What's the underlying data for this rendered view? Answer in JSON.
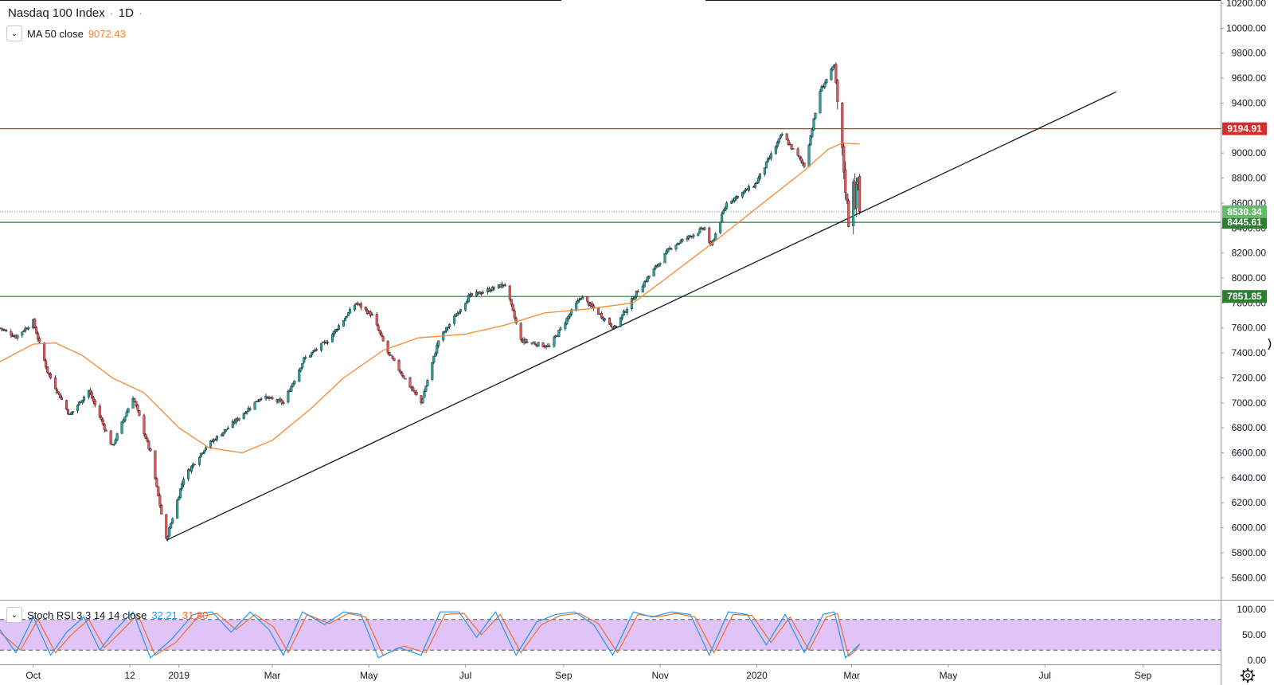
{
  "header": {
    "title": "Nasdaq 100 Index",
    "interval": "1D",
    "ma_label": "MA 50 close",
    "ma_value": "9072.43",
    "stoch_label": "Stoch RSI 3 3 14 14 close",
    "stoch_k": "32.21",
    "stoch_d": "31.80"
  },
  "colors": {
    "up": "#26a69a",
    "down": "#ef5350",
    "ma": "#f7882f",
    "resistance": "#d32f2f",
    "support": "#2e7d32",
    "current": "#66bb6a",
    "stoch_k": "#2196f3",
    "stoch_d": "#ef6c2f",
    "band": "#e1c4f7"
  },
  "chart_data": {
    "type": "candlestick",
    "price_axis": {
      "min": 5500,
      "max": 10200,
      "ticks": [
        "10200.00",
        "10000.00",
        "9800.00",
        "9600.00",
        "9400.00",
        "9200.00",
        "9000.00",
        "8800.00",
        "8600.00",
        "8400.00",
        "8200.00",
        "8000.00",
        "7800.00",
        "7600.00",
        "7400.00",
        "7200.00",
        "7000.00",
        "6800.00",
        "6600.00",
        "6400.00",
        "6200.00",
        "6000.00",
        "5800.00",
        "5600.00"
      ]
    },
    "time_axis": {
      "start": "2018-09-10",
      "end": "2020-10-20",
      "labels": [
        {
          "date": "2018-10-01",
          "text": "Oct"
        },
        {
          "date": "2018-12-01",
          "text": "12"
        },
        {
          "date": "2019-01-01",
          "text": "2019"
        },
        {
          "date": "2019-03-01",
          "text": "Mar"
        },
        {
          "date": "2019-05-01",
          "text": "May"
        },
        {
          "date": "2019-07-01",
          "text": "Jul"
        },
        {
          "date": "2019-09-01",
          "text": "Sep"
        },
        {
          "date": "2019-11-01",
          "text": "Nov"
        },
        {
          "date": "2020-01-01",
          "text": "2020"
        },
        {
          "date": "2020-03-01",
          "text": "Mar"
        },
        {
          "date": "2020-05-01",
          "text": "May"
        },
        {
          "date": "2020-07-01",
          "text": "Jul"
        },
        {
          "date": "2020-09-01",
          "text": "Sep"
        }
      ]
    },
    "price_path": [
      [
        "2018-09-10",
        7600
      ],
      [
        "2018-09-20",
        7530
      ],
      [
        "2018-10-01",
        7650
      ],
      [
        "2018-10-10",
        7250
      ],
      [
        "2018-10-24",
        6900
      ],
      [
        "2018-11-05",
        7100
      ],
      [
        "2018-11-20",
        6650
      ],
      [
        "2018-12-03",
        7050
      ],
      [
        "2018-12-14",
        6600
      ],
      [
        "2018-12-24",
        5900
      ],
      [
        "2019-01-04",
        6400
      ],
      [
        "2019-01-18",
        6650
      ],
      [
        "2019-02-01",
        6800
      ],
      [
        "2019-02-22",
        7050
      ],
      [
        "2019-03-08",
        7000
      ],
      [
        "2019-03-21",
        7350
      ],
      [
        "2019-04-05",
        7500
      ],
      [
        "2019-04-23",
        7800
      ],
      [
        "2019-05-03",
        7700
      ],
      [
        "2019-05-13",
        7400
      ],
      [
        "2019-06-03",
        7000
      ],
      [
        "2019-06-14",
        7500
      ],
      [
        "2019-07-03",
        7850
      ],
      [
        "2019-07-26",
        7950
      ],
      [
        "2019-08-05",
        7500
      ],
      [
        "2019-08-23",
        7450
      ],
      [
        "2019-09-12",
        7850
      ],
      [
        "2019-10-03",
        7600
      ],
      [
        "2019-10-18",
        7900
      ],
      [
        "2019-11-08",
        8250
      ],
      [
        "2019-11-29",
        8400
      ],
      [
        "2019-12-03",
        8250
      ],
      [
        "2019-12-13",
        8600
      ],
      [
        "2019-12-31",
        8750
      ],
      [
        "2020-01-17",
        9150
      ],
      [
        "2020-01-31",
        8900
      ],
      [
        "2020-02-10",
        9500
      ],
      [
        "2020-02-19",
        9700
      ],
      [
        "2020-02-21",
        9400
      ],
      [
        "2020-02-24",
        9000
      ],
      [
        "2020-02-28",
        8450
      ],
      [
        "2020-03-02",
        8800
      ],
      [
        "2020-03-03",
        8600
      ],
      [
        "2020-03-05",
        8800
      ],
      [
        "2020-03-06",
        8530
      ]
    ],
    "ma50_path": [
      [
        "2018-09-10",
        7330
      ],
      [
        "2018-10-01",
        7470
      ],
      [
        "2018-10-15",
        7480
      ],
      [
        "2018-11-01",
        7380
      ],
      [
        "2018-11-20",
        7200
      ],
      [
        "2018-12-10",
        7080
      ],
      [
        "2019-01-01",
        6800
      ],
      [
        "2019-01-20",
        6640
      ],
      [
        "2019-02-10",
        6600
      ],
      [
        "2019-03-01",
        6700
      ],
      [
        "2019-03-25",
        6950
      ],
      [
        "2019-04-15",
        7200
      ],
      [
        "2019-05-10",
        7420
      ],
      [
        "2019-06-01",
        7520
      ],
      [
        "2019-07-01",
        7550
      ],
      [
        "2019-07-25",
        7620
      ],
      [
        "2019-08-20",
        7720
      ],
      [
        "2019-09-15",
        7750
      ],
      [
        "2019-10-15",
        7800
      ],
      [
        "2019-11-05",
        8000
      ],
      [
        "2019-12-01",
        8250
      ],
      [
        "2019-12-31",
        8550
      ],
      [
        "2020-01-31",
        8860
      ],
      [
        "2020-02-15",
        9030
      ],
      [
        "2020-02-24",
        9080
      ],
      [
        "2020-03-06",
        9072
      ]
    ],
    "horizontal_levels": [
      {
        "price": 9194.91,
        "label": "9194.91",
        "kind": "resistance"
      },
      {
        "price": 8445.61,
        "label": "8445.61",
        "kind": "support"
      },
      {
        "price": 7851.85,
        "label": "7851.85",
        "kind": "support"
      }
    ],
    "last_price": {
      "price": 8530.34,
      "label": "8530.34"
    },
    "trendline": {
      "from": [
        "2018-12-24",
        5900
      ],
      "to": [
        "2020-08-15",
        9490
      ]
    },
    "stoch_axis": {
      "ticks": [
        "100.00",
        "50.00",
        "0.00"
      ],
      "band": [
        20,
        80
      ]
    },
    "stoch_path": [
      [
        "2018-09-10",
        60
      ],
      [
        "2018-09-20",
        15
      ],
      [
        "2018-10-01",
        85
      ],
      [
        "2018-10-12",
        10
      ],
      [
        "2018-10-22",
        55
      ],
      [
        "2018-11-02",
        85
      ],
      [
        "2018-11-12",
        20
      ],
      [
        "2018-11-22",
        60
      ],
      [
        "2018-12-03",
        95
      ],
      [
        "2018-12-14",
        5
      ],
      [
        "2018-12-27",
        40
      ],
      [
        "2019-01-10",
        90
      ],
      [
        "2019-01-22",
        95
      ],
      [
        "2019-02-03",
        55
      ],
      [
        "2019-02-15",
        95
      ],
      [
        "2019-02-27",
        60
      ],
      [
        "2019-03-08",
        10
      ],
      [
        "2019-03-20",
        95
      ],
      [
        "2019-04-03",
        70
      ],
      [
        "2019-04-15",
        95
      ],
      [
        "2019-04-26",
        90
      ],
      [
        "2019-05-07",
        5
      ],
      [
        "2019-05-20",
        25
      ],
      [
        "2019-06-03",
        10
      ],
      [
        "2019-06-15",
        95
      ],
      [
        "2019-06-27",
        95
      ],
      [
        "2019-07-08",
        45
      ],
      [
        "2019-07-20",
        95
      ],
      [
        "2019-08-02",
        10
      ],
      [
        "2019-08-15",
        75
      ],
      [
        "2019-08-27",
        90
      ],
      [
        "2019-09-08",
        95
      ],
      [
        "2019-09-20",
        70
      ],
      [
        "2019-10-02",
        10
      ],
      [
        "2019-10-15",
        95
      ],
      [
        "2019-10-27",
        85
      ],
      [
        "2019-11-08",
        95
      ],
      [
        "2019-11-20",
        90
      ],
      [
        "2019-12-02",
        10
      ],
      [
        "2019-12-14",
        95
      ],
      [
        "2019-12-26",
        90
      ],
      [
        "2020-01-07",
        30
      ],
      [
        "2020-01-19",
        90
      ],
      [
        "2020-01-31",
        15
      ],
      [
        "2020-02-12",
        90
      ],
      [
        "2020-02-19",
        95
      ],
      [
        "2020-02-26",
        5
      ],
      [
        "2020-03-02",
        20
      ],
      [
        "2020-03-06",
        32
      ]
    ],
    "stoch_d_path": [
      [
        "2018-09-10",
        55
      ],
      [
        "2018-09-23",
        20
      ],
      [
        "2018-10-04",
        80
      ],
      [
        "2018-10-15",
        15
      ],
      [
        "2018-10-25",
        50
      ],
      [
        "2018-11-05",
        80
      ],
      [
        "2018-11-15",
        25
      ],
      [
        "2018-11-25",
        55
      ],
      [
        "2018-12-06",
        90
      ],
      [
        "2018-12-17",
        10
      ],
      [
        "2018-12-30",
        35
      ],
      [
        "2019-01-13",
        85
      ],
      [
        "2019-01-25",
        92
      ],
      [
        "2019-02-06",
        60
      ],
      [
        "2019-02-18",
        90
      ],
      [
        "2019-03-02",
        65
      ],
      [
        "2019-03-11",
        15
      ],
      [
        "2019-03-23",
        90
      ],
      [
        "2019-04-06",
        72
      ],
      [
        "2019-04-18",
        92
      ],
      [
        "2019-04-29",
        85
      ],
      [
        "2019-05-10",
        10
      ],
      [
        "2019-05-23",
        28
      ],
      [
        "2019-06-06",
        15
      ],
      [
        "2019-06-18",
        90
      ],
      [
        "2019-06-30",
        92
      ],
      [
        "2019-07-11",
        50
      ],
      [
        "2019-07-23",
        90
      ],
      [
        "2019-08-05",
        15
      ],
      [
        "2019-08-18",
        70
      ],
      [
        "2019-08-30",
        88
      ],
      [
        "2019-09-11",
        92
      ],
      [
        "2019-09-23",
        72
      ],
      [
        "2019-10-05",
        15
      ],
      [
        "2019-10-18",
        90
      ],
      [
        "2019-10-30",
        85
      ],
      [
        "2019-11-11",
        92
      ],
      [
        "2019-11-23",
        85
      ],
      [
        "2019-12-05",
        15
      ],
      [
        "2019-12-17",
        90
      ],
      [
        "2019-12-29",
        88
      ],
      [
        "2020-01-10",
        35
      ],
      [
        "2020-01-22",
        85
      ],
      [
        "2020-02-03",
        20
      ],
      [
        "2020-02-14",
        85
      ],
      [
        "2020-02-21",
        92
      ],
      [
        "2020-02-28",
        8
      ],
      [
        "2020-03-03",
        18
      ],
      [
        "2020-03-06",
        31.8
      ]
    ]
  }
}
